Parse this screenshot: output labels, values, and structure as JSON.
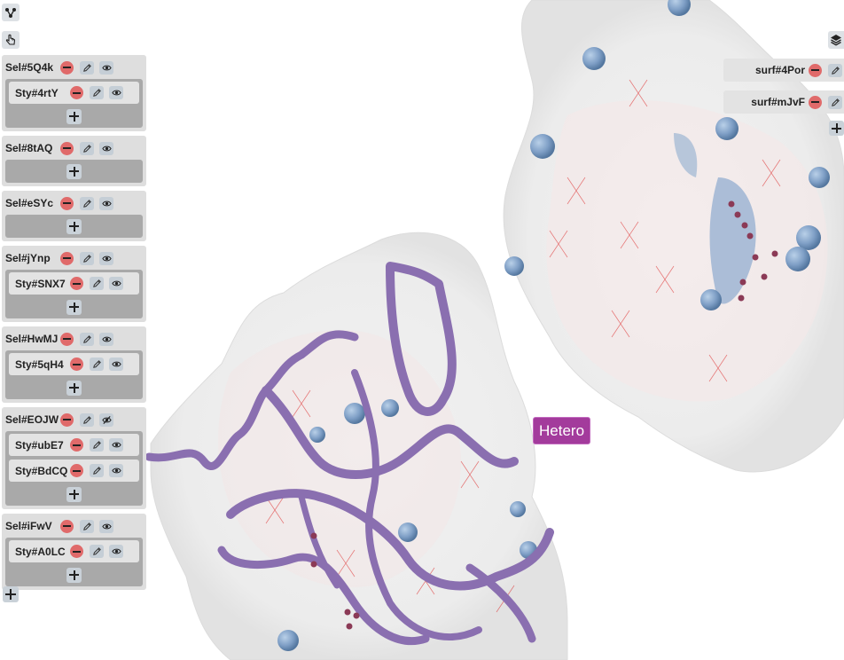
{
  "toolbar": {
    "top_icons": [
      "molecule-icon",
      "pointer-icon"
    ],
    "right_icon": "layers-icon"
  },
  "selections": [
    {
      "name": "Sel#5Q4k",
      "visible": true,
      "styles": [
        "Sty#4rtY"
      ]
    },
    {
      "name": "Sel#8tAQ",
      "visible": true,
      "styles": []
    },
    {
      "name": "Sel#eSYc",
      "visible": true,
      "styles": []
    },
    {
      "name": "Sel#jYnp",
      "visible": true,
      "styles": [
        "Sty#SNX7"
      ]
    },
    {
      "name": "Sel#HwMJ",
      "visible": true,
      "styles": [
        "Sty#5qH4"
      ]
    },
    {
      "name": "Sel#EOJW",
      "visible": false,
      "styles": [
        "Sty#ubE7",
        "Sty#BdCQ"
      ]
    },
    {
      "name": "Sel#iFwV",
      "visible": true,
      "styles": [
        "Sty#A0LC"
      ]
    }
  ],
  "surfaces": [
    "surf#4Por",
    "surf#mJvF"
  ],
  "viewer": {
    "hetero_label": "Hetero",
    "ribbon_color": "#8a6fb0",
    "label_color": "#a33b9c"
  }
}
